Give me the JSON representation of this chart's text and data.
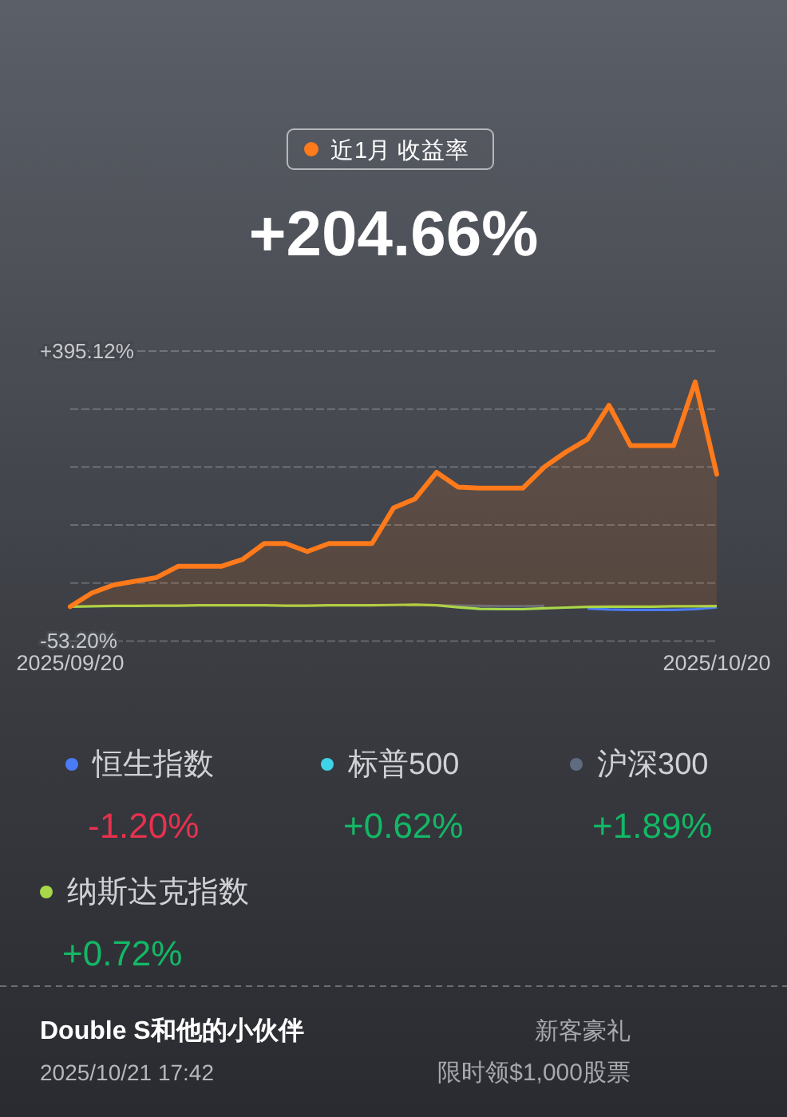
{
  "chart_data": {
    "type": "line",
    "title": "+204.66%",
    "categories": [
      "2025/09/20",
      null,
      null,
      null,
      null,
      null,
      null,
      null,
      null,
      null,
      null,
      null,
      null,
      null,
      null,
      null,
      null,
      null,
      null,
      null,
      null,
      null,
      null,
      null,
      null,
      null,
      null,
      null,
      null,
      null,
      "2025/10/20"
    ],
    "series": [
      {
        "name": "近1月 收益率",
        "type": "area",
        "color": "#ff7a1a",
        "values": [
          0,
          21.0,
          33.4,
          39.1,
          44.9,
          62.2,
          62.2,
          62.2,
          72.9,
          97.5,
          97.5,
          85.2,
          97.5,
          97.5,
          97.5,
          152.6,
          166.6,
          207.7,
          184.7,
          183.1,
          183.1,
          183.1,
          215.9,
          239.0,
          258.7,
          311.3,
          248.8,
          248.8,
          248.8,
          347.5,
          204.66
        ]
      },
      {
        "name": "恒生指数",
        "color": "#4a7cf7",
        "values": [
          null,
          null,
          null,
          null,
          null,
          null,
          null,
          null,
          null,
          null,
          null,
          null,
          null,
          null,
          null,
          null,
          null,
          null,
          null,
          null,
          null,
          null,
          null,
          null,
          -3,
          -4.5,
          -5,
          -5,
          -5,
          -4,
          -1.2
        ]
      },
      {
        "name": "标普500",
        "color": "#3fd3e8",
        "values": [
          null,
          null,
          null,
          null,
          null,
          null,
          null,
          null,
          null,
          null,
          null,
          null,
          null,
          null,
          null,
          null,
          null,
          null,
          null,
          null,
          null,
          null,
          null,
          null,
          null,
          null,
          null,
          null,
          null,
          null,
          null
        ]
      },
      {
        "name": "沪深300",
        "color": "#5f6b80",
        "values": [
          null,
          null,
          null,
          null,
          null,
          null,
          null,
          null,
          null,
          null,
          null,
          null,
          null,
          null,
          null,
          null,
          null,
          2,
          1.5,
          1,
          0.5,
          0.5,
          1,
          null,
          null,
          null,
          null,
          null,
          null,
          null,
          null
        ]
      },
      {
        "name": "纳斯达克指数",
        "color": "#a8d84a",
        "values": [
          0,
          0.5,
          1,
          1,
          1.5,
          1.5,
          2,
          2,
          2,
          2,
          1.5,
          1.5,
          2,
          2,
          2,
          2.5,
          3,
          2,
          -1,
          -3.5,
          -4,
          -4,
          -2.5,
          -1.5,
          -0.5,
          0,
          0,
          0,
          0.5,
          0.5,
          0.72
        ]
      }
    ],
    "ylim": [
      -53.2,
      395.12
    ],
    "yticks": [
      {
        "value": -53.2,
        "label": "-53.20%"
      },
      {
        "value": 36.464,
        "label": null
      },
      {
        "value": 126.128,
        "label": null
      },
      {
        "value": 215.792,
        "label": null
      },
      {
        "value": 305.456,
        "label": null
      },
      {
        "value": 395.12,
        "label": "+395.12%"
      }
    ],
    "grid": "y",
    "legend": "bottom",
    "annotations": [
      "-1.20%",
      "+0.62%",
      "+1.89%",
      "+0.72%",
      "Double S和他的小伙伴",
      "2025/10/21 17:42",
      "新客豪礼",
      "限时领$1,000股票"
    ]
  }
}
